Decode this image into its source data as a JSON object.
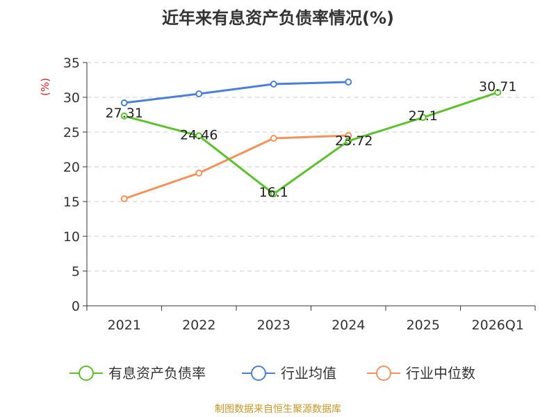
{
  "title": "近年来有息资产负债率情况(%)",
  "source": "制图数据来自恒生聚源数据库",
  "chart_data": {
    "type": "line",
    "categories": [
      "2021",
      "2022",
      "2023",
      "2024",
      "2025",
      "2026Q1"
    ],
    "ylabel": "(%)",
    "ylim": [
      0,
      35
    ],
    "yticks": [
      0,
      5,
      10,
      15,
      20,
      25,
      30,
      35
    ],
    "grid": true,
    "legend_position": "bottom",
    "series": [
      {
        "name": "有息资产负债率",
        "color": "#5ac12b",
        "values": [
          27.31,
          24.46,
          16.1,
          23.72,
          27.1,
          30.71
        ],
        "labels": [
          "27.31",
          "24.46",
          "16.1",
          "23.72",
          "27.1",
          "30.71"
        ]
      },
      {
        "name": "行业均值",
        "color": "#4a7fd6",
        "values": [
          29.2,
          30.5,
          31.9,
          32.2,
          null,
          null
        ]
      },
      {
        "name": "行业中位数",
        "color": "#f5915a",
        "values": [
          15.4,
          19.1,
          24.1,
          24.5,
          null,
          null
        ]
      }
    ]
  },
  "colors": {
    "ylabel": "#e02020",
    "axis": "#333333",
    "grid": "#cccccc",
    "source": "#c8962a"
  }
}
